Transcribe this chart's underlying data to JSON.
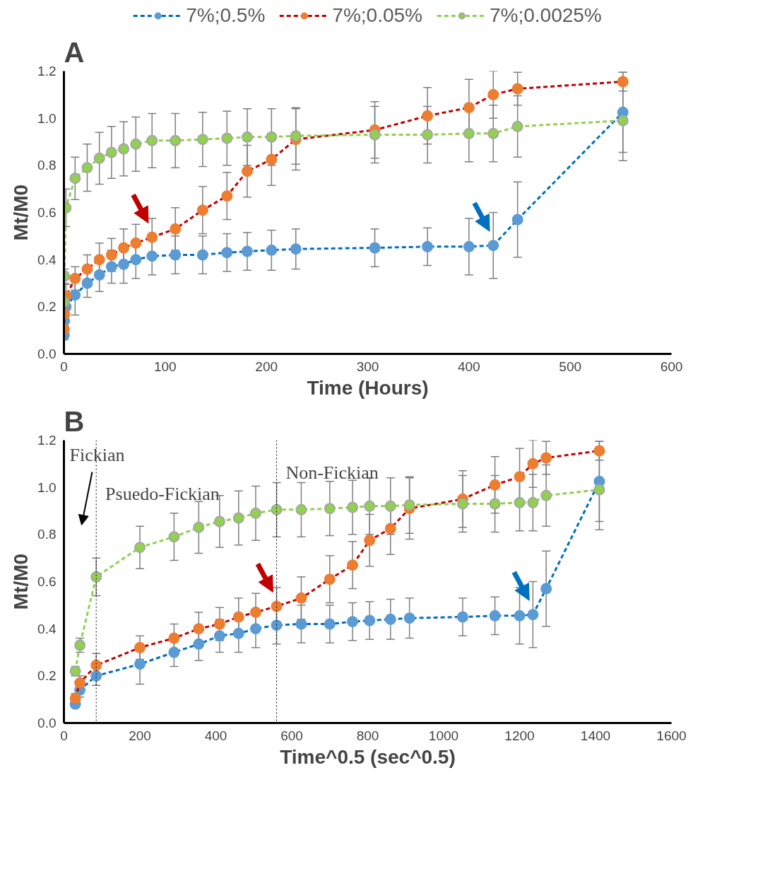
{
  "chart_data": [
    {
      "type": "line",
      "title": "A",
      "xlabel": "Time (Hours)",
      "ylabel": "Mt/M0",
      "xlim": [
        0,
        600
      ],
      "xticks": [
        0,
        100,
        200,
        300,
        400,
        500,
        600
      ],
      "ylim": [
        0,
        1.2
      ],
      "yticks": [
        {
          "value": 0,
          "label": "0.0"
        },
        {
          "value": 0.2,
          "label": "0.2"
        },
        {
          "value": 0.4,
          "label": "0.4"
        },
        {
          "value": 0.6,
          "label": "0.6"
        },
        {
          "value": 0.8,
          "label": "0.8"
        },
        {
          "value": 1.0,
          "label": "1.0"
        },
        {
          "value": 1.2,
          "label": "1.2"
        }
      ],
      "grid": false,
      "legend": "top",
      "marker": "circle",
      "line_style": "dashed",
      "x": [
        0.25,
        0.5,
        2,
        11,
        23,
        35,
        47,
        59,
        71,
        87,
        110,
        137,
        161,
        181,
        205,
        229,
        307,
        359,
        400,
        424,
        448,
        552
      ],
      "series": [
        {
          "name": "7%;0.5%",
          "color": "#5b9bd5",
          "values": [
            0.08,
            0.14,
            0.2,
            0.25,
            0.3,
            0.335,
            0.37,
            0.38,
            0.4,
            0.415,
            0.42,
            0.42,
            0.43,
            0.435,
            0.44,
            0.445,
            0.45,
            0.455,
            0.455,
            0.46,
            0.57,
            1.025
          ],
          "errors": [
            0.02,
            0.03,
            0.04,
            0.085,
            0.06,
            0.07,
            0.07,
            0.08,
            0.08,
            0.08,
            0.08,
            0.08,
            0.08,
            0.08,
            0.085,
            0.085,
            0.08,
            0.08,
            0.12,
            0.14,
            0.16,
            0.17
          ]
        },
        {
          "name": "7%;0.05%",
          "color": "#ed7d31",
          "values": [
            0.105,
            0.17,
            0.245,
            0.32,
            0.36,
            0.4,
            0.42,
            0.45,
            0.47,
            0.495,
            0.53,
            0.61,
            0.67,
            0.775,
            0.825,
            0.91,
            0.95,
            1.01,
            1.045,
            1.1,
            1.125,
            1.155
          ],
          "errors": [
            0.02,
            0.03,
            0.05,
            0.05,
            0.06,
            0.07,
            0.07,
            0.08,
            0.08,
            0.08,
            0.09,
            0.1,
            0.1,
            0.11,
            0.11,
            0.13,
            0.12,
            0.12,
            0.12,
            0.1,
            0.07,
            0.04
          ]
        },
        {
          "name": "7%;0.0025%",
          "color": "#92d050",
          "values": [
            0.22,
            0.33,
            0.62,
            0.745,
            0.79,
            0.83,
            0.855,
            0.87,
            0.89,
            0.905,
            0.905,
            0.91,
            0.915,
            0.92,
            0.92,
            0.925,
            0.93,
            0.93,
            0.935,
            0.935,
            0.965,
            0.99
          ],
          "errors": [
            0.02,
            0.03,
            0.08,
            0.09,
            0.1,
            0.11,
            0.11,
            0.115,
            0.115,
            0.115,
            0.115,
            0.115,
            0.115,
            0.12,
            0.12,
            0.12,
            0.12,
            0.12,
            0.12,
            0.12,
            0.13,
            0.17
          ]
        }
      ]
    },
    {
      "type": "line",
      "title": "B",
      "xlabel": "Time^0.5 (sec^0.5)",
      "ylabel": "Mt/M0",
      "xlim": [
        0,
        1600
      ],
      "xticks": [
        0,
        200,
        400,
        600,
        800,
        1000,
        1200,
        1400,
        1600
      ],
      "ylim": [
        0,
        1.2
      ],
      "yticks": [
        {
          "value": 0,
          "label": "0.0"
        },
        {
          "value": 0.2,
          "label": "0.2"
        },
        {
          "value": 0.4,
          "label": "0.4"
        },
        {
          "value": 0.6,
          "label": "0.6"
        },
        {
          "value": 0.8,
          "label": "0.8"
        },
        {
          "value": 1.0,
          "label": "1.0"
        },
        {
          "value": 1.2,
          "label": "1.2"
        }
      ],
      "grid": false,
      "marker": "circle",
      "line_style": "dashed",
      "x": [
        30,
        42,
        85,
        200,
        290,
        355,
        410,
        460,
        505,
        560,
        625,
        700,
        760,
        805,
        860,
        910,
        1050,
        1135,
        1200,
        1235,
        1270,
        1410
      ],
      "series": [
        {
          "color": "#5b9bd5",
          "values": [
            0.08,
            0.14,
            0.2,
            0.25,
            0.3,
            0.335,
            0.37,
            0.38,
            0.4,
            0.415,
            0.42,
            0.42,
            0.43,
            0.435,
            0.44,
            0.445,
            0.45,
            0.455,
            0.455,
            0.46,
            0.57,
            1.025
          ],
          "errors": [
            null,
            0.03,
            0.04,
            0.085,
            0.06,
            0.07,
            0.07,
            0.08,
            0.08,
            0.08,
            0.08,
            0.08,
            0.08,
            0.08,
            0.085,
            0.085,
            0.08,
            0.08,
            0.12,
            0.14,
            0.16,
            0.17
          ]
        },
        {
          "color": "#ed7d31",
          "values": [
            0.105,
            0.17,
            0.245,
            0.32,
            0.36,
            0.4,
            0.42,
            0.45,
            0.47,
            0.495,
            0.53,
            0.61,
            0.67,
            0.775,
            0.825,
            0.91,
            0.95,
            1.01,
            1.045,
            1.1,
            1.125,
            1.155
          ],
          "errors": [
            0.02,
            0.03,
            0.05,
            0.05,
            0.06,
            0.07,
            0.07,
            0.08,
            0.08,
            0.08,
            0.09,
            0.1,
            0.1,
            0.11,
            0.11,
            0.13,
            0.12,
            0.12,
            0.12,
            0.1,
            0.07,
            0.04
          ]
        },
        {
          "color": "#92d050",
          "values": [
            0.22,
            0.33,
            0.62,
            0.745,
            0.79,
            0.83,
            0.855,
            0.87,
            0.89,
            0.905,
            0.905,
            0.91,
            0.915,
            0.92,
            0.92,
            0.925,
            0.93,
            0.93,
            0.935,
            0.935,
            0.965,
            0.99
          ],
          "errors": [
            0.02,
            0.03,
            0.08,
            0.09,
            0.1,
            0.11,
            0.11,
            0.115,
            0.115,
            0.115,
            0.115,
            0.115,
            0.115,
            0.12,
            0.12,
            0.12,
            0.12,
            0.12,
            0.12,
            0.12,
            0.13,
            0.17
          ]
        }
      ],
      "ref_lines": [
        {
          "axis": "x",
          "value": 85,
          "line_style": "dotted",
          "color": "#000000"
        },
        {
          "axis": "x",
          "value": 560,
          "line_style": "dotted",
          "color": "#000000"
        }
      ],
      "annotations": [
        "Fickian",
        "Psuedo-Fickian",
        "Non-Fickian"
      ]
    }
  ]
}
